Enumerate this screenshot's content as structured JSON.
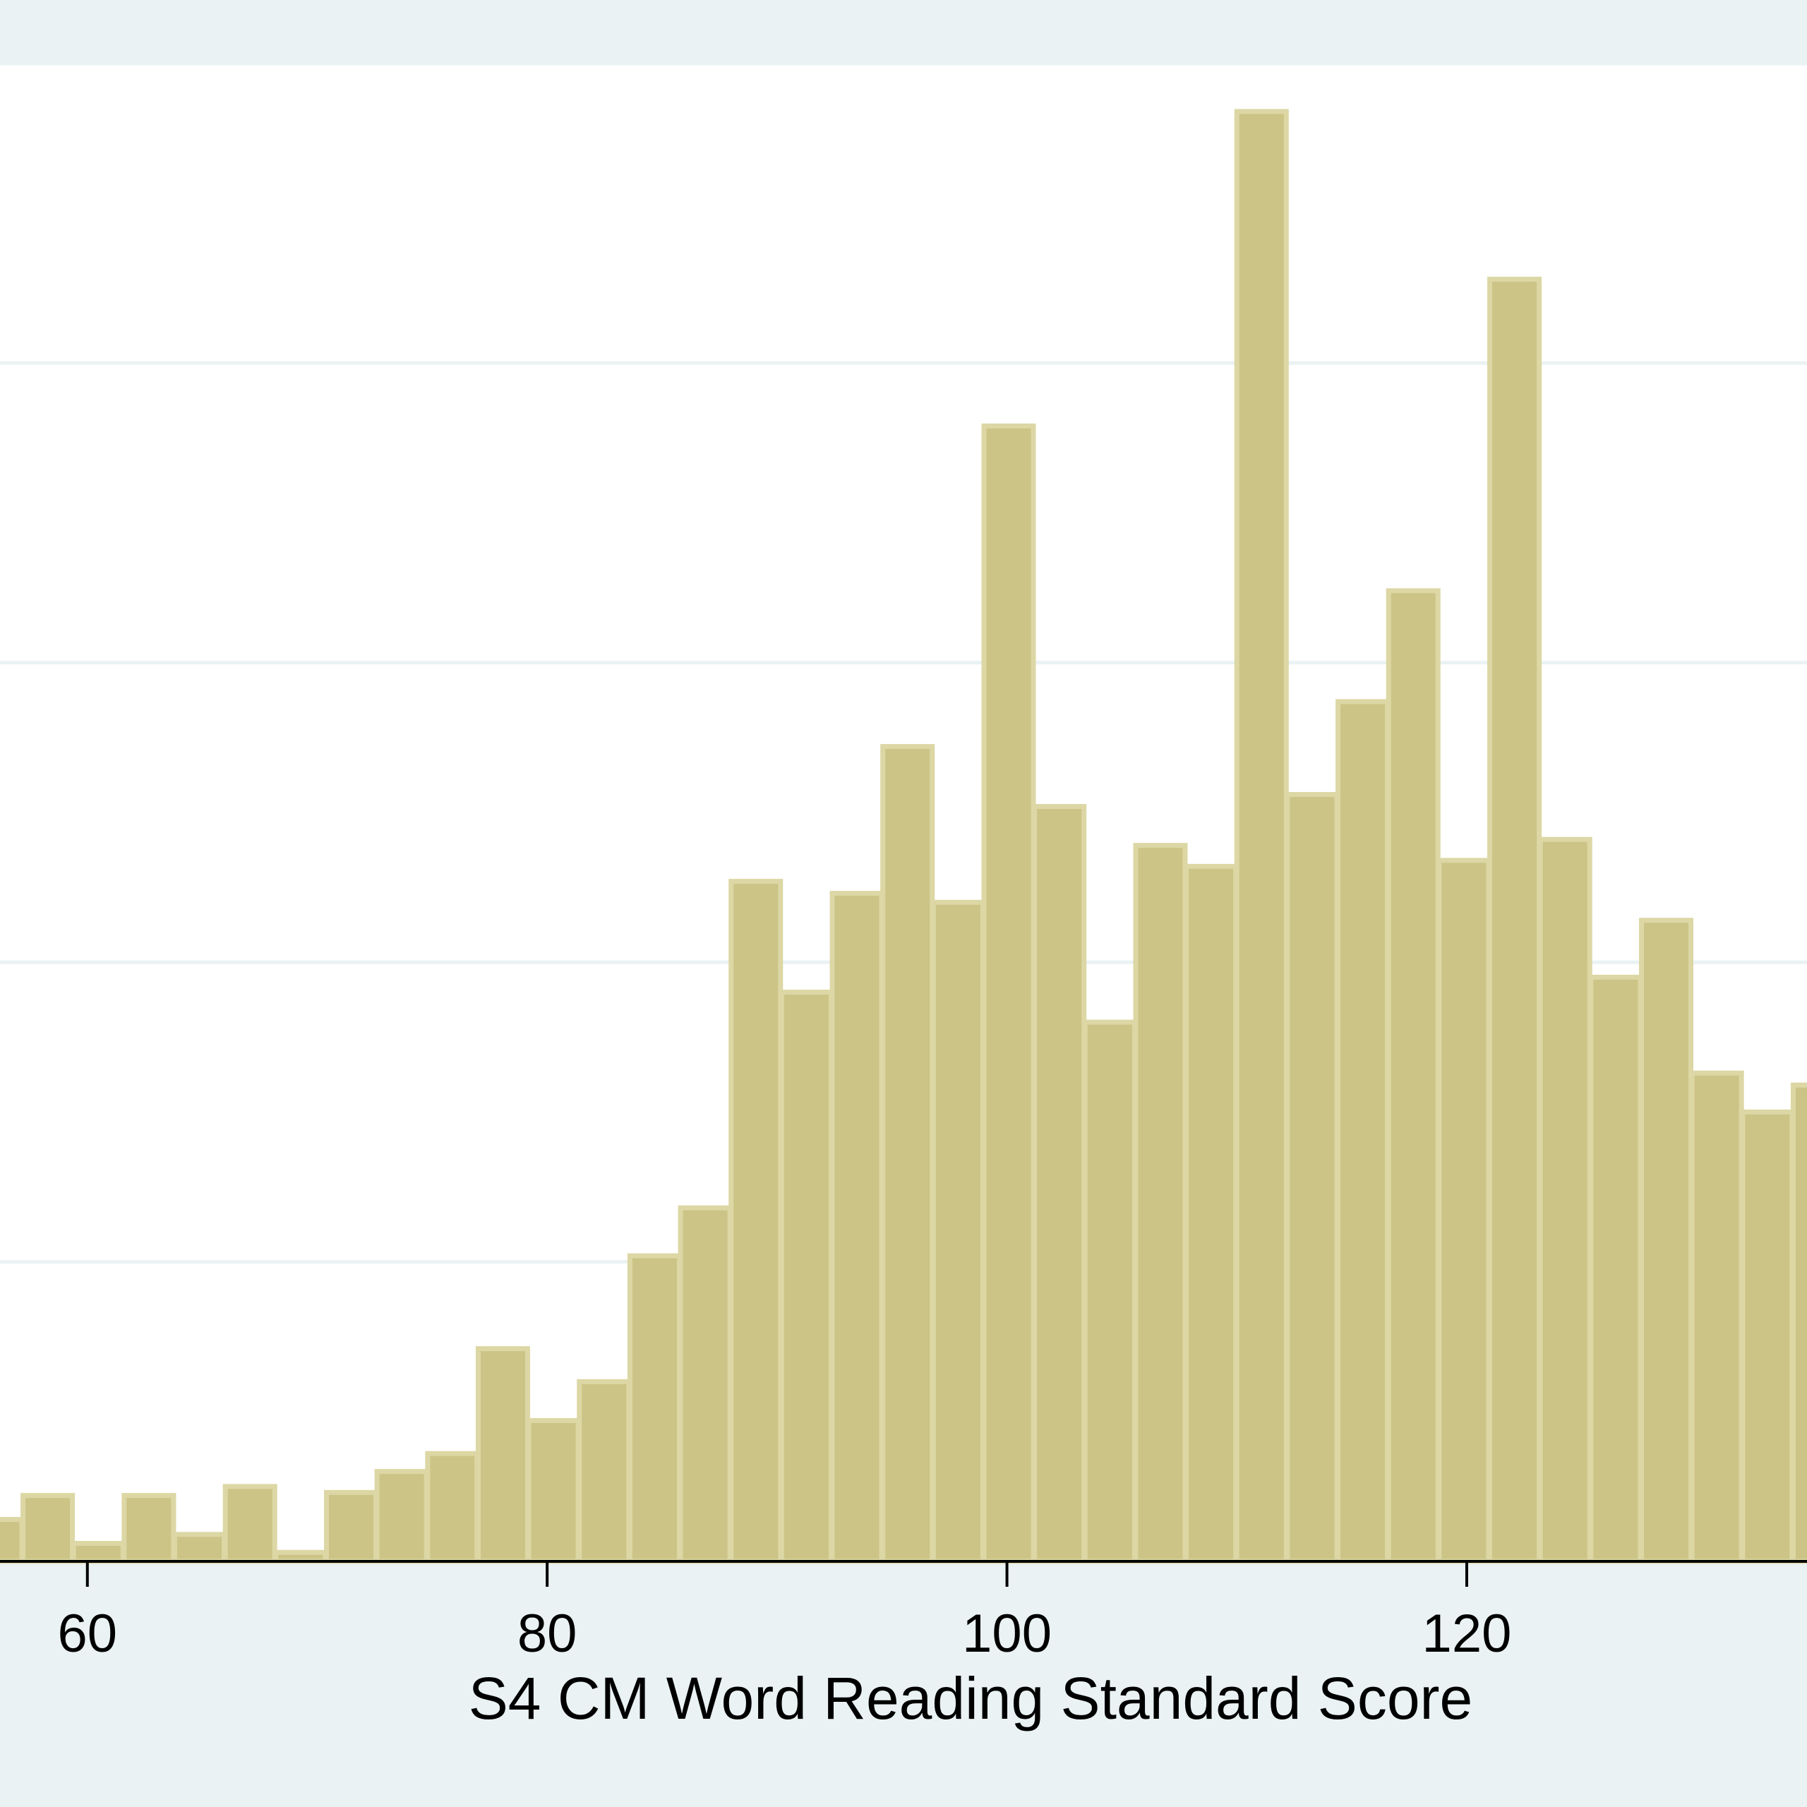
{
  "chart_data": {
    "type": "bar",
    "title": "",
    "xlabel": "S4 CM Word Reading Standard Score",
    "ylabel": "",
    "x_ticks": [
      60,
      80,
      100,
      120
    ],
    "xlim": [
      56.2,
      134.8
    ],
    "ylim": [
      0,
      5
    ],
    "grid": "horizontal",
    "bin_width": 2.15,
    "bins": [
      {
        "x": 55.0,
        "y": 0.14
      },
      {
        "x": 57.2,
        "y": 0.22
      },
      {
        "x": 59.4,
        "y": 0.06
      },
      {
        "x": 61.6,
        "y": 0.22
      },
      {
        "x": 63.8,
        "y": 0.09
      },
      {
        "x": 66.0,
        "y": 0.25
      },
      {
        "x": 68.2,
        "y": 0.03
      },
      {
        "x": 70.4,
        "y": 0.23
      },
      {
        "x": 72.6,
        "y": 0.3
      },
      {
        "x": 74.8,
        "y": 0.36
      },
      {
        "x": 77.0,
        "y": 0.71
      },
      {
        "x": 79.2,
        "y": 0.47
      },
      {
        "x": 81.4,
        "y": 0.6
      },
      {
        "x": 83.6,
        "y": 1.02
      },
      {
        "x": 85.8,
        "y": 1.18
      },
      {
        "x": 88.0,
        "y": 2.27
      },
      {
        "x": 90.2,
        "y": 1.9
      },
      {
        "x": 92.4,
        "y": 2.23
      },
      {
        "x": 94.6,
        "y": 2.72
      },
      {
        "x": 96.8,
        "y": 2.2
      },
      {
        "x": 99.0,
        "y": 3.79
      },
      {
        "x": 101.2,
        "y": 2.52
      },
      {
        "x": 103.4,
        "y": 1.8
      },
      {
        "x": 105.6,
        "y": 2.39
      },
      {
        "x": 107.8,
        "y": 2.32
      },
      {
        "x": 110.0,
        "y": 4.84
      },
      {
        "x": 112.2,
        "y": 2.56
      },
      {
        "x": 114.4,
        "y": 2.87
      },
      {
        "x": 116.6,
        "y": 3.24
      },
      {
        "x": 118.8,
        "y": 2.34
      },
      {
        "x": 121.0,
        "y": 4.28
      },
      {
        "x": 123.2,
        "y": 2.41
      },
      {
        "x": 125.4,
        "y": 1.95
      },
      {
        "x": 127.6,
        "y": 2.14
      },
      {
        "x": 129.8,
        "y": 1.63
      },
      {
        "x": 132.0,
        "y": 1.5
      },
      {
        "x": 134.2,
        "y": 1.59
      }
    ]
  }
}
